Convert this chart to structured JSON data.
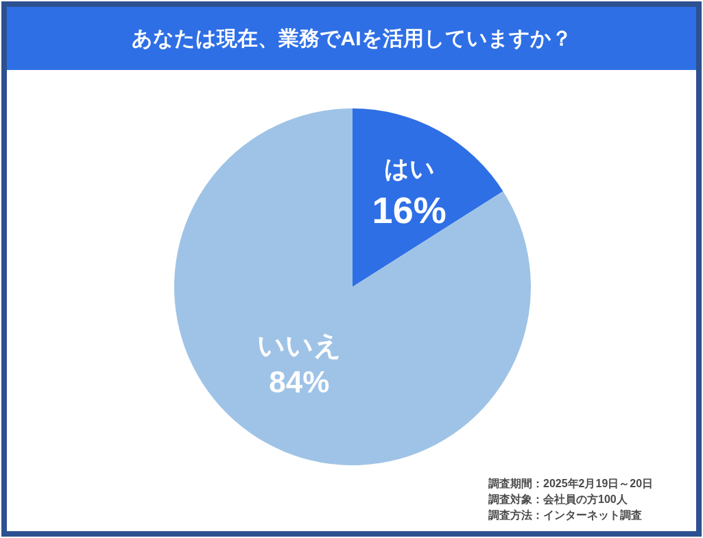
{
  "chart_data": {
    "type": "pie",
    "title": "あなたは現在、業務でAIを活用していますか？",
    "categories": [
      "はい",
      "いいえ"
    ],
    "values": [
      16,
      84
    ],
    "colors": [
      "#2f6fe5",
      "#9fc3e6"
    ],
    "value_labels": [
      "16%",
      "84%"
    ],
    "annotations": [
      "調査期間：2025年2月19日～20日",
      "調査対象：会社員の方100人",
      "調査方法：インターネット調査"
    ]
  }
}
